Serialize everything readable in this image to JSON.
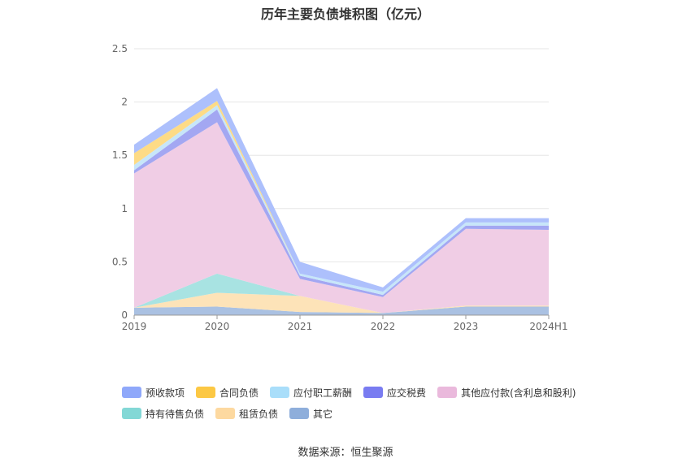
{
  "chart_data": {
    "type": "area",
    "stacked": true,
    "title": "历年主要负债堆积图（亿元）",
    "x": [
      "2019",
      "2020",
      "2021",
      "2022",
      "2023",
      "2024H1"
    ],
    "ylim": [
      0,
      2.5
    ],
    "yticks": [
      "0",
      "0.5",
      "1",
      "1.5",
      "2",
      "2.5"
    ],
    "grid": true,
    "legend_position": "bottom",
    "series": [
      {
        "name": "其它",
        "color": "#aac1e2",
        "values": [
          0.07,
          0.08,
          0.03,
          0.02,
          0.08,
          0.08
        ]
      },
      {
        "name": "租赁负债",
        "color": "#fde3b8",
        "values": [
          0.0,
          0.13,
          0.15,
          0.0,
          0.01,
          0.01
        ]
      },
      {
        "name": "持有待售负债",
        "color": "#a8e3e2",
        "values": [
          0.0,
          0.18,
          0.0,
          0.0,
          0.0,
          0.0
        ]
      },
      {
        "name": "其他应付款(含利息和股利)",
        "color": "#f0cde5",
        "values": [
          1.26,
          1.42,
          0.16,
          0.15,
          0.72,
          0.71
        ]
      },
      {
        "name": "应交税费",
        "color": "#a3a7f2",
        "values": [
          0.03,
          0.12,
          0.03,
          0.02,
          0.03,
          0.04
        ]
      },
      {
        "name": "应付职工薪酬",
        "color": "#c7e6f9",
        "values": [
          0.05,
          0.04,
          0.02,
          0.03,
          0.03,
          0.03
        ]
      },
      {
        "name": "合同负债",
        "color": "#fddb86",
        "values": [
          0.11,
          0.04,
          0.0,
          0.0,
          0.0,
          0.0
        ]
      },
      {
        "name": "预收款项",
        "color": "#adc0fc",
        "values": [
          0.08,
          0.12,
          0.11,
          0.04,
          0.04,
          0.04
        ]
      }
    ]
  },
  "legend": [
    {
      "name": "预收款项",
      "color": "#8fa8fa"
    },
    {
      "name": "合同负债",
      "color": "#fcc844"
    },
    {
      "name": "应付职工薪酬",
      "color": "#a9defa"
    },
    {
      "name": "应交税费",
      "color": "#797cf1"
    },
    {
      "name": "其他应付款(含利息和股利)",
      "color": "#eab9dc"
    },
    {
      "name": "持有待售负债",
      "color": "#83d8d6"
    },
    {
      "name": "租赁负债",
      "color": "#fdd9a0"
    },
    {
      "name": "其它",
      "color": "#8eaedb"
    }
  ],
  "source": "数据来源：恒生聚源"
}
